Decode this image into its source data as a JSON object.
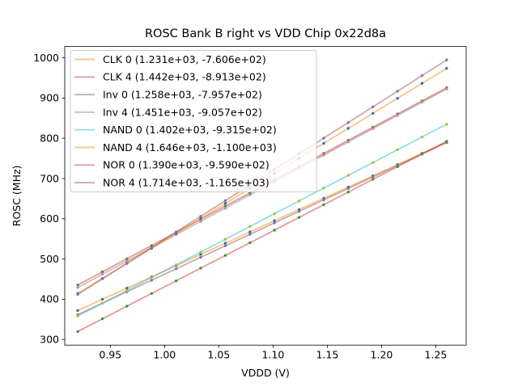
{
  "chart_data": {
    "type": "scatter",
    "title": "ROSC Bank B right vs VDD Chip 0x22d8a",
    "xlabel": "VDDD (V)",
    "ylabel": "ROSC (MHz)",
    "xlim": [
      0.908,
      1.278
    ],
    "ylim": [
      286,
      1028
    ],
    "grid": false,
    "legend_position": "upper left",
    "xticks": [
      0.95,
      1.0,
      1.05,
      1.1,
      1.15,
      1.2,
      1.25
    ],
    "xtick_labels": [
      "0.95",
      "1.00",
      "1.05",
      "1.10",
      "1.15",
      "1.20",
      "1.25"
    ],
    "yticks": [
      300,
      400,
      500,
      600,
      700,
      800,
      900,
      1000
    ],
    "ytick_labels": [
      "300",
      "400",
      "500",
      "600",
      "700",
      "800",
      "900",
      "1000"
    ],
    "x": [
      0.92,
      0.9427,
      0.9653,
      0.988,
      1.0107,
      1.0333,
      1.056,
      1.0787,
      1.1013,
      1.124,
      1.1467,
      1.1693,
      1.192,
      1.2147,
      1.2373,
      1.26
    ],
    "line_alpha": 0.5,
    "series": [
      {
        "name": "CLK 0",
        "fit_slope": 1231.0,
        "fit_intercept": -760.6,
        "legend_label": "CLK 0 (1.231e+03, -7.606e+02)",
        "line_color": "#ff7f0e",
        "marker_color": "#1f77b4"
      },
      {
        "name": "CLK 4",
        "fit_slope": 1442.0,
        "fit_intercept": -891.3,
        "legend_label": "CLK 4 (1.442e+03, -8.913e+02)",
        "line_color": "#d62728",
        "marker_color": "#2ca02c"
      },
      {
        "name": "Inv 0",
        "fit_slope": 1258.0,
        "fit_intercept": -795.7,
        "legend_label": "Inv 0 (1.258e+03, -7.957e+02)",
        "line_color": "#8c564b",
        "marker_color": "#9467bd"
      },
      {
        "name": "Inv 4",
        "fit_slope": 1451.0,
        "fit_intercept": -905.7,
        "legend_label": "Inv 4 (1.451e+03, -9.057e+02)",
        "line_color": "#7f7f7f",
        "marker_color": "#e377c2"
      },
      {
        "name": "NAND 0",
        "fit_slope": 1402.0,
        "fit_intercept": -931.5,
        "legend_label": "NAND 0 (1.402e+03, -9.315e+02)",
        "line_color": "#17becf",
        "marker_color": "#bcbd22"
      },
      {
        "name": "NAND 4",
        "fit_slope": 1646.0,
        "fit_intercept": -1100.0,
        "legend_label": "NAND 4 (1.646e+03, -1.100e+03)",
        "line_color": "#ff7f0e",
        "marker_color": "#1f77b4"
      },
      {
        "name": "NOR 0",
        "fit_slope": 1390.0,
        "fit_intercept": -959.0,
        "legend_label": "NOR 0 (1.390e+03, -9.590e+02)",
        "line_color": "#d62728",
        "marker_color": "#2ca02c"
      },
      {
        "name": "NOR 4",
        "fit_slope": 1714.0,
        "fit_intercept": -1165.0,
        "legend_label": "NOR 4 (1.714e+03, -1.165e+03)",
        "line_color": "#8c564b",
        "marker_color": "#9467bd"
      }
    ]
  }
}
